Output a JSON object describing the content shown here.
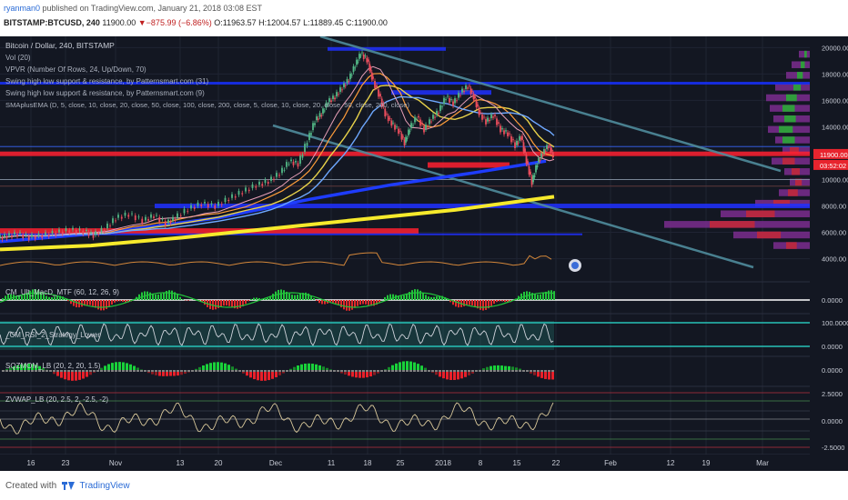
{
  "header": {
    "author": "ryanman0",
    "published_text": " published on TradingView.com, January 21, 2018 03:08 EST",
    "symbol": "BITSTAMP:BTCUSD, 240",
    "last": "11900.00",
    "arrow": "▼",
    "change": "−875.99 (−6.86%)",
    "ohlc": "O:11963.57 H:12004.57 L:11889.45 C:11900.00"
  },
  "legend": {
    "title": "Bitcoin / Dollar, 240, BITSTAMP",
    "lines": [
      "Vol (20)",
      "VPVR (Number Of Rows, 24, Up/Down, 70)",
      "Swing high low support & resistance, by Patternsmart.com (31)",
      "Swing high low support & resistance, by Patternsmart.com (9)",
      "SMAplusEMA (D, 5, close, 10, close, 20, close, 50, close, 100, close, 200, close, 5, close, 10, close, 20, close, 50, close, 200, close)"
    ]
  },
  "panes": [
    {
      "label": "CM_Ult_MacD_MTF (60, 12, 26, 9)",
      "axis_labels": [
        "0.0000"
      ]
    },
    {
      "label": "_CM_RSI_2_Strategy_Lower",
      "axis_labels": [
        "100.0000",
        "0.0000"
      ]
    },
    {
      "label": "SQZMOM_LB (20, 2, 20, 1.5)",
      "axis_labels": [
        "0.0000"
      ]
    },
    {
      "label": "ZVWAP_LB (20, 2.5, 2, -2.5, -2)",
      "axis_labels": [
        "2.5000",
        "0.0000",
        "-2.5000"
      ]
    }
  ],
  "footer": {
    "created_with": "Created with",
    "brand": "TradingView"
  },
  "colors": {
    "background": "#131722",
    "grid": "#1f2433",
    "up_candle": "#53b987",
    "down_candle": "#eb4d5c",
    "sma_yellow": "#f7ea2c",
    "ema_blue": "#1e3cff",
    "channel": "#4f8c9c",
    "support_red": "#ff2e2e"
  },
  "chart_data": {
    "type": "candlestick",
    "symbol": "BITSTAMP:BTCUSD",
    "interval": "240",
    "last_price": 11900.0,
    "countdown": "03:52:02",
    "x_ticks": [
      "16",
      "23",
      "Nov",
      "13",
      "20",
      "Dec",
      "11",
      "18",
      "25",
      "2018",
      "8",
      "15",
      "22",
      "Feb",
      "12",
      "19",
      "Mar"
    ],
    "y_ticks": [
      "20000.00",
      "18000.00",
      "16000.00",
      "14000.00",
      "12000.00",
      "10000.00",
      "8000.00",
      "6000.00",
      "4000.00"
    ],
    "ylim": [
      2800,
      20300
    ],
    "price_path": [
      [
        0,
        5600
      ],
      [
        10,
        5750
      ],
      [
        22,
        5900
      ],
      [
        35,
        5650
      ],
      [
        50,
        5800
      ],
      [
        65,
        6000
      ],
      [
        80,
        6200
      ],
      [
        95,
        6100
      ],
      [
        105,
        5800
      ],
      [
        118,
        6300
      ],
      [
        130,
        7100
      ],
      [
        145,
        7400
      ],
      [
        160,
        6900
      ],
      [
        172,
        7300
      ],
      [
        185,
        6700
      ],
      [
        195,
        7100
      ],
      [
        210,
        7800
      ],
      [
        225,
        8200
      ],
      [
        240,
        8000
      ],
      [
        255,
        8600
      ],
      [
        270,
        9100
      ],
      [
        285,
        9600
      ],
      [
        298,
        9900
      ],
      [
        310,
        10500
      ],
      [
        320,
        11400
      ],
      [
        330,
        11200
      ],
      [
        340,
        13000
      ],
      [
        348,
        14500
      ],
      [
        355,
        15000
      ],
      [
        362,
        15900
      ],
      [
        370,
        16300
      ],
      [
        378,
        17000
      ],
      [
        385,
        17600
      ],
      [
        392,
        18700
      ],
      [
        398,
        19600
      ],
      [
        405,
        19100
      ],
      [
        410,
        17800
      ],
      [
        418,
        16500
      ],
      [
        425,
        15000
      ],
      [
        432,
        14300
      ],
      [
        440,
        13700
      ],
      [
        446,
        12800
      ],
      [
        452,
        13900
      ],
      [
        460,
        14800
      ],
      [
        468,
        13800
      ],
      [
        476,
        14600
      ],
      [
        484,
        15200
      ],
      [
        492,
        16300
      ],
      [
        500,
        15800
      ],
      [
        508,
        16600
      ],
      [
        516,
        17100
      ],
      [
        522,
        16300
      ],
      [
        528,
        15100
      ],
      [
        536,
        14400
      ],
      [
        544,
        14900
      ],
      [
        552,
        13800
      ],
      [
        560,
        13500
      ],
      [
        568,
        12600
      ],
      [
        574,
        13300
      ],
      [
        580,
        11400
      ],
      [
        586,
        9800
      ],
      [
        592,
        11300
      ],
      [
        598,
        12000
      ],
      [
        604,
        12600
      ],
      [
        609,
        11900
      ]
    ],
    "indicator_panes": [
      "CM_Ult_MacD_MTF (60, 12, 26, 9)",
      "_CM_RSI_2_Strategy_Lower",
      "SQZMOM_LB (20, 2, 20, 1.5)",
      "ZVWAP_LB (20, 2.5, 2, -2.5, -2)"
    ]
  }
}
